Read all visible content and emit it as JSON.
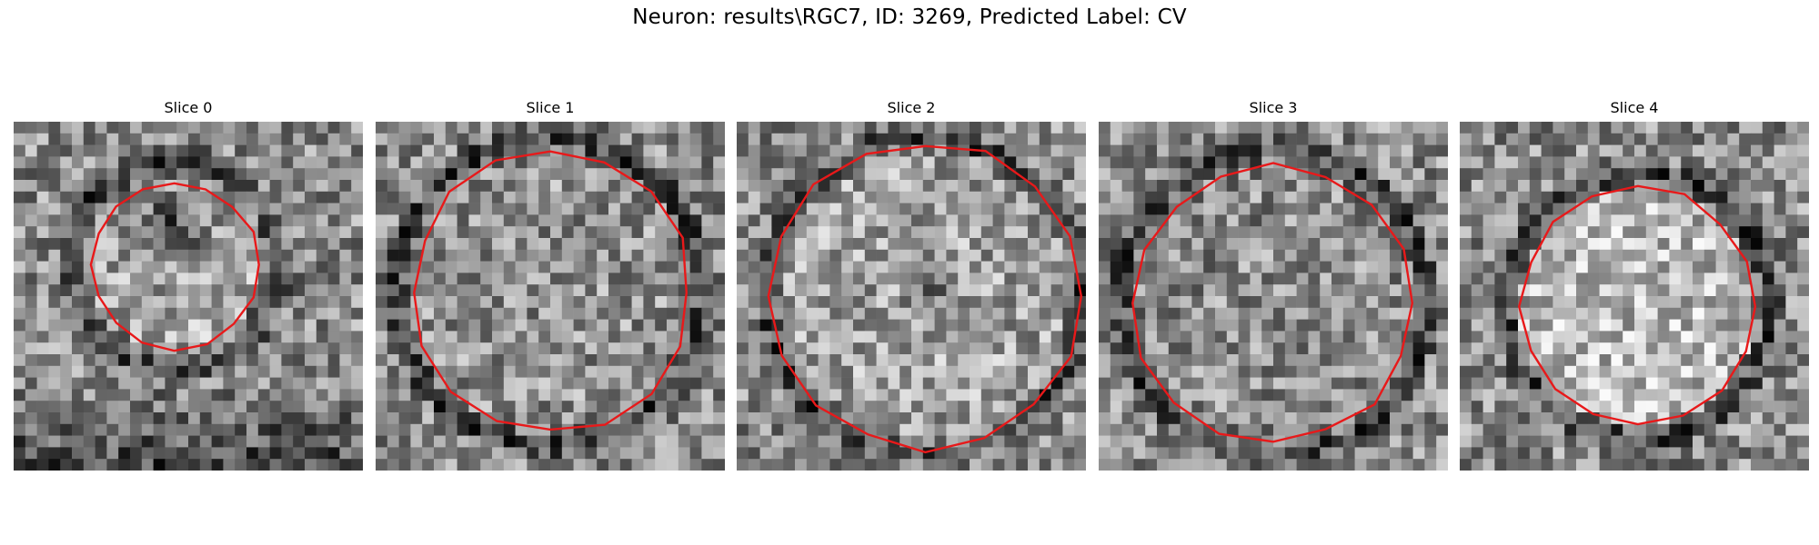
{
  "figure": {
    "title": "Neuron: results\\RGC7, ID: 3269, Predicted Label: CV",
    "contour_color": "#e8191a"
  },
  "panels": [
    {
      "title": "Slice 0",
      "seed": 11,
      "center": [
        0.46,
        0.41
      ],
      "radius": 0.24,
      "ring_radius": 0.3,
      "inner_bright": 0.1,
      "dark_blob": [
        0.45,
        0.3,
        0.1,
        -0.35
      ],
      "bottom_dark": true
    },
    {
      "title": "Slice 1",
      "seed": 23,
      "center": [
        0.5,
        0.49
      ],
      "radius": 0.4,
      "ring_radius": 0.44,
      "inner_bright": 0.02,
      "dark_blob": null,
      "bottom_dark": false
    },
    {
      "title": "Slice 2",
      "seed": 37,
      "center": [
        0.54,
        0.5
      ],
      "radius": 0.44,
      "ring_radius": 0.45,
      "inner_bright": 0.08,
      "dark_blob": [
        0.55,
        0.45,
        0.06,
        -0.35
      ],
      "bottom_dark": false
    },
    {
      "title": "Slice 3",
      "seed": 51,
      "center": [
        0.5,
        0.52
      ],
      "radius": 0.4,
      "ring_radius": 0.44,
      "inner_bright": 0.0,
      "dark_blob": null,
      "bottom_dark": false
    },
    {
      "title": "Slice 4",
      "seed": 67,
      "center": [
        0.51,
        0.53
      ],
      "radius": 0.34,
      "ring_radius": 0.38,
      "inner_bright": 0.18,
      "dark_blob": null,
      "bottom_dark": false
    }
  ]
}
